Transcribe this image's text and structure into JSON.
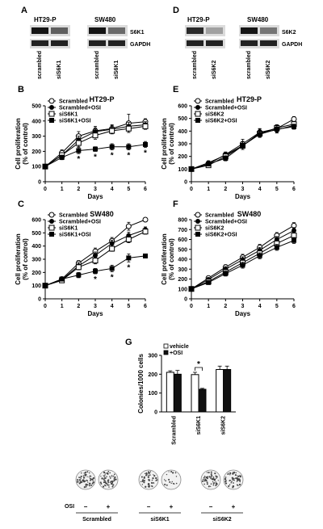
{
  "blots": {
    "A": {
      "letter": "A",
      "groups": [
        {
          "cell": "HT29-P",
          "protein": "S6K1",
          "loading": "GAPDH",
          "lanes": [
            "scrambled",
            "siS6K1"
          ],
          "band_intensity": [
            1.0,
            0.65
          ]
        },
        {
          "cell": "SW480",
          "protein": "S6K1",
          "loading": "GAPDH",
          "lanes": [
            "scrambled",
            "siS6K1"
          ],
          "band_intensity": [
            1.0,
            0.6
          ]
        }
      ]
    },
    "D": {
      "letter": "D",
      "groups": [
        {
          "cell": "HT29-P",
          "protein": "S6K2",
          "loading": "GAPDH",
          "lanes": [
            "scrambled",
            "siS6K2"
          ],
          "band_intensity": [
            0.9,
            0.35
          ]
        },
        {
          "cell": "SW480",
          "protein": "S6K2",
          "loading": "GAPDH",
          "lanes": [
            "scrambled",
            "siS6K2"
          ],
          "band_intensity": [
            1.0,
            0.55
          ]
        }
      ]
    }
  },
  "chart_data": [
    {
      "panel": "B",
      "type": "line",
      "title": "HT29-P",
      "xlabel": "Days",
      "ylabel": "Cell proliferation",
      "ylabel2": "(% of control)",
      "x": [
        0,
        1,
        2,
        3,
        4,
        5,
        6
      ],
      "xlim": [
        0,
        6
      ],
      "ylim": [
        0,
        500
      ],
      "yticks": [
        0,
        100,
        200,
        300,
        400,
        500
      ],
      "legend": "top-left",
      "series": [
        {
          "name": "Scrambled",
          "marker": "open-circle",
          "values": [
            100,
            190,
            300,
            335,
            350,
            385,
            395
          ],
          "err": [
            0,
            20,
            30,
            30,
            25,
            60,
            20
          ]
        },
        {
          "name": "Scrambled+OSI",
          "marker": "filled-circle",
          "values": [
            100,
            175,
            275,
            330,
            345,
            365,
            375
          ],
          "err": [
            0,
            15,
            25,
            25,
            25,
            25,
            20
          ]
        },
        {
          "name": "siS6K1",
          "marker": "open-square",
          "values": [
            100,
            175,
            255,
            305,
            335,
            350,
            365
          ],
          "err": [
            0,
            15,
            25,
            25,
            20,
            25,
            20
          ]
        },
        {
          "name": "siS6K1+OSI",
          "marker": "filled-square",
          "values": [
            100,
            160,
            205,
            215,
            230,
            230,
            245
          ],
          "err": [
            0,
            15,
            20,
            15,
            20,
            20,
            20
          ]
        }
      ],
      "annotations": [
        {
          "x": 2,
          "text": "*"
        },
        {
          "x": 3,
          "text": "*"
        },
        {
          "x": 4,
          "text": "*"
        },
        {
          "x": 5,
          "text": "*"
        },
        {
          "x": 6,
          "text": "*"
        }
      ]
    },
    {
      "panel": "C",
      "type": "line",
      "title": "SW480",
      "xlabel": "Days",
      "ylabel": "Cell proliferation",
      "ylabel2": "(% of control)",
      "x": [
        0,
        1,
        2,
        3,
        4,
        5,
        6
      ],
      "xlim": [
        0,
        6
      ],
      "ylim": [
        0,
        600
      ],
      "yticks": [
        0,
        100,
        200,
        300,
        400,
        500,
        600
      ],
      "legend": "top-left",
      "series": [
        {
          "name": "Scrambled",
          "marker": "open-circle",
          "values": [
            100,
            150,
            270,
            360,
            440,
            550,
            600
          ],
          "err": [
            0,
            15,
            20,
            25,
            25,
            30,
            15
          ]
        },
        {
          "name": "Scrambled+OSI",
          "marker": "filled-circle",
          "values": [
            100,
            145,
            250,
            330,
            420,
            480,
            525
          ],
          "err": [
            0,
            15,
            25,
            25,
            25,
            25,
            20
          ]
        },
        {
          "name": "siS6K1",
          "marker": "open-square",
          "values": [
            100,
            140,
            240,
            290,
            380,
            450,
            510
          ],
          "err": [
            0,
            15,
            20,
            25,
            20,
            25,
            20
          ]
        },
        {
          "name": "siS6K1+OSI",
          "marker": "filled-square",
          "values": [
            100,
            150,
            180,
            210,
            230,
            310,
            325
          ],
          "err": [
            0,
            15,
            20,
            20,
            25,
            30,
            15
          ]
        }
      ],
      "annotations": [
        {
          "x": 3,
          "text": "*"
        },
        {
          "x": 4,
          "text": "*"
        },
        {
          "x": 5,
          "text": "*"
        }
      ]
    },
    {
      "panel": "E",
      "type": "line",
      "title": "HT29-P",
      "xlabel": "Days",
      "ylabel": "Cell proliferation",
      "ylabel2": "(% of control)",
      "x": [
        0,
        1,
        2,
        3,
        4,
        5,
        6
      ],
      "xlim": [
        0,
        6
      ],
      "ylim": [
        0,
        600
      ],
      "yticks": [
        0,
        100,
        200,
        300,
        400,
        500,
        600
      ],
      "legend": "top-left",
      "series": [
        {
          "name": "Scrambled",
          "marker": "open-circle",
          "values": [
            100,
            140,
            215,
            300,
            390,
            420,
            495
          ],
          "err": [
            0,
            15,
            20,
            35,
            30,
            30,
            20
          ]
        },
        {
          "name": "Scrambled+OSI",
          "marker": "filled-circle",
          "values": [
            100,
            150,
            210,
            285,
            385,
            410,
            445
          ],
          "err": [
            0,
            15,
            20,
            30,
            30,
            25,
            25
          ]
        },
        {
          "name": "siS6K2",
          "marker": "open-square",
          "values": [
            100,
            130,
            200,
            285,
            380,
            425,
            455
          ],
          "err": [
            0,
            15,
            20,
            30,
            25,
            25,
            20
          ]
        },
        {
          "name": "siS6K2+OSI",
          "marker": "filled-square",
          "values": [
            100,
            140,
            185,
            285,
            375,
            415,
            435
          ],
          "err": [
            0,
            15,
            20,
            30,
            25,
            25,
            20
          ]
        }
      ],
      "annotations": []
    },
    {
      "panel": "F",
      "type": "line",
      "title": "SW480",
      "xlabel": "Days",
      "ylabel": "Cell proliferation",
      "ylabel2": "(% of control)",
      "x": [
        0,
        1,
        2,
        3,
        4,
        5,
        6
      ],
      "xlim": [
        0,
        6
      ],
      "ylim": [
        0,
        800
      ],
      "yticks": [
        0,
        100,
        200,
        300,
        400,
        500,
        600,
        700,
        800
      ],
      "legend": "top-left",
      "series": [
        {
          "name": "Scrambled",
          "marker": "open-circle",
          "values": [
            100,
            210,
            320,
            420,
            520,
            640,
            740
          ],
          "err": [
            0,
            20,
            25,
            30,
            30,
            30,
            30
          ]
        },
        {
          "name": "Scrambled+OSI",
          "marker": "filled-circle",
          "values": [
            100,
            195,
            300,
            395,
            490,
            600,
            690
          ],
          "err": [
            0,
            20,
            25,
            30,
            30,
            30,
            30
          ]
        },
        {
          "name": "siS6K2",
          "marker": "open-square",
          "values": [
            100,
            175,
            270,
            365,
            460,
            560,
            640
          ],
          "err": [
            0,
            20,
            25,
            30,
            30,
            30,
            30
          ]
        },
        {
          "name": "siS6K2+OSI",
          "marker": "filled-square",
          "values": [
            100,
            165,
            255,
            340,
            435,
            520,
            590
          ],
          "err": [
            0,
            20,
            25,
            30,
            30,
            30,
            30
          ]
        }
      ],
      "annotations": []
    },
    {
      "panel": "G",
      "type": "bar",
      "title": "",
      "xlabel": "",
      "ylabel": "Colonies/1000 cells",
      "categories": [
        "Scrambled",
        "siS6K1",
        "siS6K2"
      ],
      "ylim": [
        0,
        300
      ],
      "yticks": [
        0,
        100,
        200,
        300
      ],
      "legend": "top-left",
      "series": [
        {
          "name": "vehicle",
          "fill": "#ffffff",
          "values": [
            210,
            198,
            225
          ],
          "err": [
            8,
            12,
            18
          ]
        },
        {
          "name": "+OSI",
          "fill": "#111111",
          "values": [
            200,
            120,
            225
          ],
          "err": [
            20,
            5,
            18
          ]
        }
      ],
      "annotations": [
        {
          "category": 1,
          "text": "*"
        }
      ]
    }
  ],
  "colony_plates": {
    "label": "OSI",
    "treatments": [
      "−",
      "+"
    ],
    "groups": [
      "Scrambled",
      "siS6K1",
      "siS6K2"
    ],
    "density": [
      [
        0.7,
        0.7
      ],
      [
        0.55,
        0.2
      ],
      [
        0.6,
        0.6
      ]
    ]
  },
  "colors": {
    "ink": "#000000",
    "band": "#1a1a1a",
    "membrane": "#dcdcdc",
    "plate": "#f2f2f2"
  }
}
